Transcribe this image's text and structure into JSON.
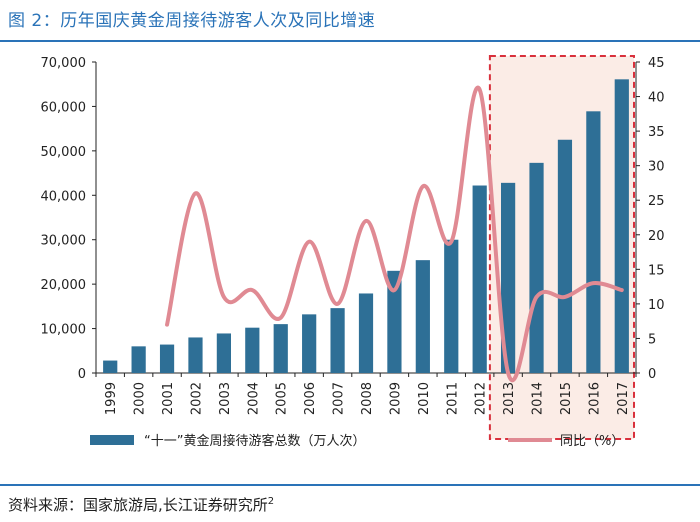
{
  "title": "图 2：历年国庆黄金周接待游客人次及同比增速",
  "source": {
    "text": "资料来源：国家旅游局,长江证券研究所",
    "sup": "2"
  },
  "colors": {
    "bar": "#2e6f96",
    "line": "#e08a93",
    "highlight_border": "#d9303c",
    "highlight_fill": "#fbece6",
    "accent": "#2a73b8"
  },
  "chart_data": {
    "type": "bar",
    "categories": [
      "1999",
      "2000",
      "2001",
      "2002",
      "2003",
      "2004",
      "2005",
      "2006",
      "2007",
      "2008",
      "2009",
      "2010",
      "2011",
      "2012",
      "2013",
      "2014",
      "2015",
      "2016",
      "2017"
    ],
    "series": [
      {
        "name": "“十一”黄金周接待游客总数（万人次）",
        "type": "bar",
        "axis": "left",
        "values": [
          2800,
          6000,
          6400,
          8000,
          8900,
          10200,
          11000,
          13200,
          14600,
          17900,
          23000,
          25400,
          30000,
          42200,
          42800,
          47300,
          52500,
          58900,
          66100
        ]
      },
      {
        "name": "同比（%）",
        "type": "line",
        "axis": "right",
        "values": [
          null,
          null,
          7,
          26,
          11,
          12,
          8,
          19,
          10,
          22,
          12,
          27,
          19,
          41,
          0,
          11,
          11,
          13,
          12
        ]
      }
    ],
    "y_left": {
      "range": [
        0,
        70000
      ],
      "ticks": [
        "0",
        "10,000",
        "20,000",
        "30,000",
        "40,000",
        "50,000",
        "60,000",
        "70,000"
      ]
    },
    "y_right": {
      "range": [
        0,
        45
      ],
      "ticks": [
        "0",
        "5",
        "10",
        "15",
        "20",
        "25",
        "30",
        "35",
        "40",
        "45"
      ]
    },
    "highlight": {
      "from": "2013",
      "to": "2017",
      "style": "dashed"
    },
    "legend_position": "bottom"
  }
}
